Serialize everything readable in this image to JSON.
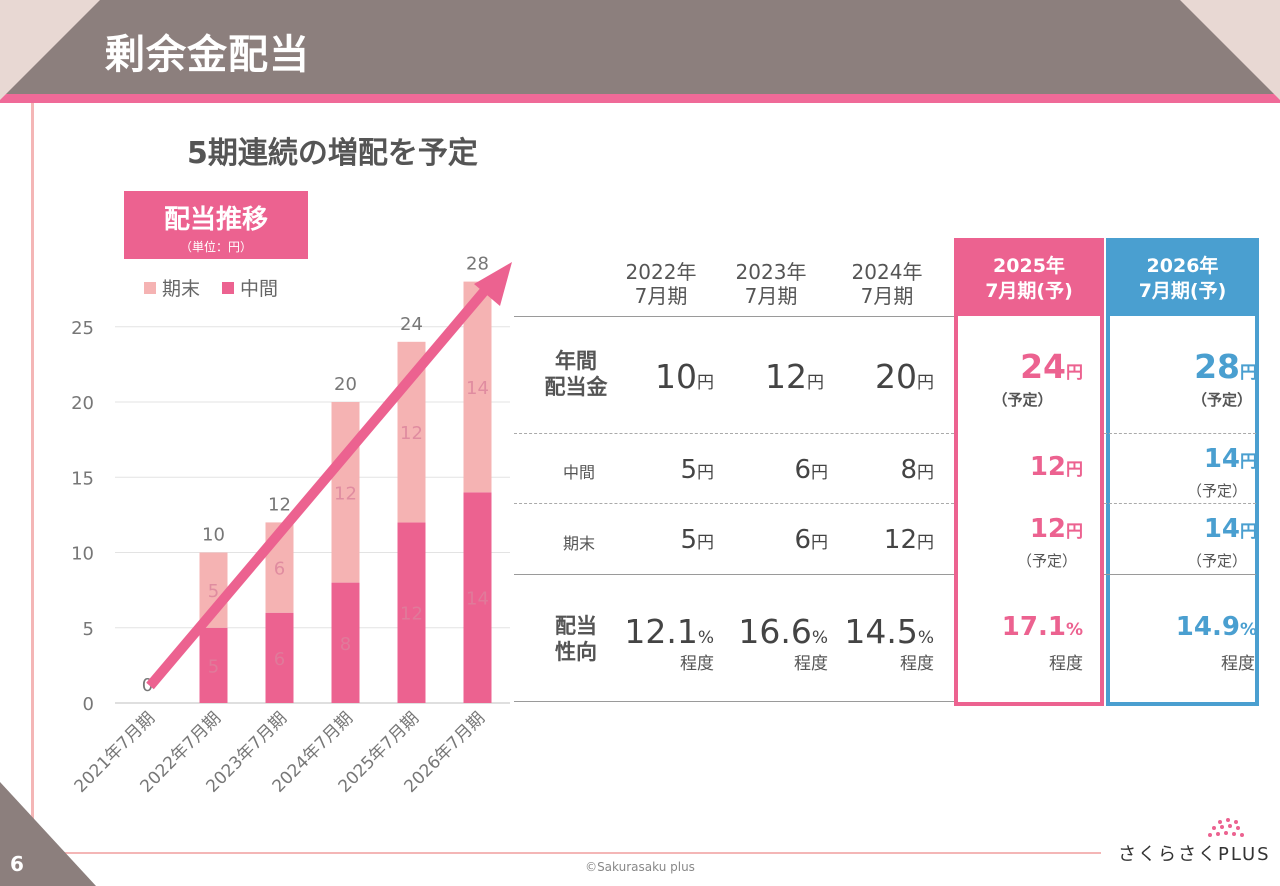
{
  "page": {
    "title": "剰余金配当",
    "subtitle": "5期連続の増配を予定",
    "page_number": "6",
    "copyright": "©Sakurasaku plus",
    "logo_text": "さくらさくPLUS"
  },
  "colors": {
    "accent_pink": "#ec6290",
    "light_pink": "#f5b3b3",
    "accent_blue": "#4a9fd0",
    "header_gray": "#8c7f7d"
  },
  "chart_box": {
    "title": "配当推移",
    "unit": "（単位：円）"
  },
  "chart_data": {
    "type": "bar",
    "stacked": true,
    "categories": [
      "2021年7月期",
      "2022年7月期",
      "2023年7月期",
      "2024年7月期",
      "2025年7月期",
      "2026年7月期"
    ],
    "series": [
      {
        "name": "中間",
        "values": [
          0,
          5,
          6,
          8,
          12,
          14
        ],
        "color": "#ec6290",
        "labels": [
          "",
          "5",
          "6",
          "8",
          "12",
          "14"
        ]
      },
      {
        "name": "期末",
        "values": [
          0,
          5,
          6,
          12,
          12,
          14
        ],
        "color": "#f5b3b3",
        "labels": [
          "",
          "5",
          "6",
          "12",
          "12",
          "14"
        ]
      }
    ],
    "totals": [
      "0",
      "10",
      "12",
      "20",
      "24",
      "28"
    ],
    "legend_order": [
      "期末",
      "中間"
    ],
    "legend_position": "top-left",
    "yticks": [
      "0",
      "5",
      "10",
      "15",
      "20",
      "25"
    ],
    "ylim": [
      0,
      28
    ],
    "grid": true,
    "trend_arrow": true
  },
  "table": {
    "columns": [
      {
        "line1": "2022年",
        "line2": "7月期"
      },
      {
        "line1": "2023年",
        "line2": "7月期"
      },
      {
        "line1": "2024年",
        "line2": "7月期"
      },
      {
        "line1": "2025年",
        "line2": "7月期(予)"
      },
      {
        "line1": "2026年",
        "line2": "7月期(予)"
      }
    ],
    "rows": {
      "annual": {
        "label1": "年間",
        "label2": "配当金",
        "values": [
          "10",
          "12",
          "20",
          "24",
          "28"
        ],
        "unit": "円",
        "notes": [
          "",
          "",
          "",
          "（予定）",
          "（予定）"
        ]
      },
      "interim": {
        "label": "中間",
        "values": [
          "5",
          "6",
          "8",
          "12",
          "14"
        ],
        "unit": "円",
        "notes": [
          "",
          "",
          "",
          "",
          "（予定）"
        ]
      },
      "yearend": {
        "label": "期末",
        "values": [
          "5",
          "6",
          "12",
          "12",
          "14"
        ],
        "unit": "円",
        "notes": [
          "",
          "",
          "",
          "（予定）",
          "（予定）"
        ]
      },
      "payout": {
        "label1": "配当",
        "label2": "性向",
        "values": [
          "12.1",
          "16.6",
          "14.5",
          "17.1",
          "14.9"
        ],
        "unit": "%",
        "note": "程度"
      }
    }
  }
}
